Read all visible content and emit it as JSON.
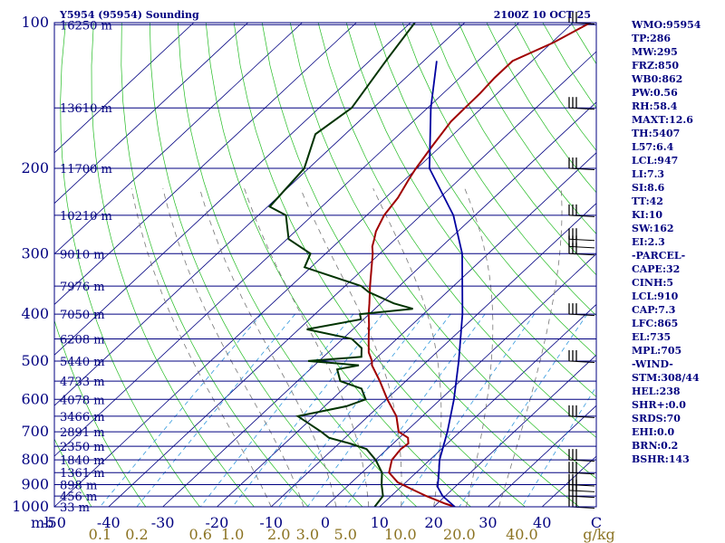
{
  "chart_data": {
    "type": "skew-t",
    "title_left": "Y5954 (95954) Sounding",
    "title_right": "2100Z 10 OCT 25",
    "pressure_range_hpa": [
      1000,
      100
    ],
    "temp_range_c": [
      -50,
      50
    ],
    "pressure_ticks": [
      {
        "p": 100,
        "label": "100"
      },
      {
        "p": 200,
        "label": "200"
      },
      {
        "p": 300,
        "label": "300"
      },
      {
        "p": 400,
        "label": "400"
      },
      {
        "p": 500,
        "label": "500"
      },
      {
        "p": 600,
        "label": "600"
      },
      {
        "p": 700,
        "label": "700"
      },
      {
        "p": 800,
        "label": "800"
      },
      {
        "p": 900,
        "label": "900"
      },
      {
        "p": 1000,
        "label": "1000"
      }
    ],
    "height_levels": [
      {
        "p": 101,
        "label": "16250 m"
      },
      {
        "p": 150,
        "label": "13610 m"
      },
      {
        "p": 200,
        "label": "11700 m"
      },
      {
        "p": 250,
        "label": "10210 m"
      },
      {
        "p": 300,
        "label": "9010 m"
      },
      {
        "p": 350,
        "label": "7976 m"
      },
      {
        "p": 400,
        "label": "7050 m"
      },
      {
        "p": 450,
        "label": "6208 m"
      },
      {
        "p": 500,
        "label": "5440 m"
      },
      {
        "p": 550,
        "label": "4733 m"
      },
      {
        "p": 600,
        "label": "4078 m"
      },
      {
        "p": 650,
        "label": "3466 m"
      },
      {
        "p": 700,
        "label": "2891 m"
      },
      {
        "p": 750,
        "label": "2350 m"
      },
      {
        "p": 800,
        "label": "1840 m"
      },
      {
        "p": 850,
        "label": "1361 m"
      },
      {
        "p": 900,
        "label": "898 m"
      },
      {
        "p": 950,
        "label": "456 m"
      },
      {
        "p": 1000,
        "label": "33 m"
      }
    ],
    "pressure_unit_label": "mb",
    "temp_ticks": [
      {
        "t": -50,
        "label": "-50"
      },
      {
        "t": -40,
        "label": "-40"
      },
      {
        "t": -30,
        "label": "-30"
      },
      {
        "t": -20,
        "label": "-20"
      },
      {
        "t": -10,
        "label": "-10"
      },
      {
        "t": 0,
        "label": "0"
      },
      {
        "t": 10,
        "label": "10"
      },
      {
        "t": 20,
        "label": "20"
      },
      {
        "t": 30,
        "label": "30"
      },
      {
        "t": 40,
        "label": "40"
      },
      {
        "t": 50,
        "label": "C"
      }
    ],
    "mixing_ratio_ticks": [
      {
        "w": 0.1,
        "label": "0.1"
      },
      {
        "w": 0.2,
        "label": "0.2"
      },
      {
        "w": 0.6,
        "label": "0.6"
      },
      {
        "w": 1.0,
        "label": "1.0"
      },
      {
        "w": 2.0,
        "label": "2.0"
      },
      {
        "w": 3.0,
        "label": "3.0"
      },
      {
        "w": 5.0,
        "label": "5.0"
      },
      {
        "w": 10.0,
        "label": "10.0"
      },
      {
        "w": 20.0,
        "label": "20.0"
      },
      {
        "w": 40.0,
        "label": "40.0"
      }
    ],
    "mixing_ratio_unit": "g/kg",
    "series": [
      {
        "name": "Temperature",
        "color": "#a00000",
        "points": [
          [
            1000,
            23.9
          ],
          [
            985,
            21.5
          ],
          [
            950,
            16.5
          ],
          [
            920,
            12.5
          ],
          [
            890,
            8.5
          ],
          [
            850,
            5.0
          ],
          [
            800,
            3.0
          ],
          [
            760,
            2.5
          ],
          [
            740,
            2.8
          ],
          [
            720,
            1.6
          ],
          [
            700,
            -1.3
          ],
          [
            650,
            -4.8
          ],
          [
            600,
            -9.8
          ],
          [
            550,
            -14.8
          ],
          [
            510,
            -19.4
          ],
          [
            500,
            -20.2
          ],
          [
            480,
            -22.5
          ],
          [
            450,
            -25.2
          ],
          [
            420,
            -28.0
          ],
          [
            400,
            -30.1
          ],
          [
            380,
            -32.1
          ],
          [
            350,
            -35.4
          ],
          [
            300,
            -41.3
          ],
          [
            290,
            -42.8
          ],
          [
            280,
            -43.9
          ],
          [
            270,
            -45.1
          ],
          [
            250,
            -46.8
          ],
          [
            230,
            -47.7
          ],
          [
            210,
            -49.4
          ],
          [
            200,
            -50.2
          ],
          [
            180,
            -51.6
          ],
          [
            160,
            -53.0
          ],
          [
            150,
            -53.1
          ],
          [
            140,
            -53.2
          ],
          [
            130,
            -53.6
          ],
          [
            120,
            -53.6
          ],
          [
            110,
            -49.7
          ],
          [
            100,
            -46.8
          ]
        ]
      },
      {
        "name": "Dewpoint",
        "color": "#003300",
        "points": [
          [
            1000,
            9.1
          ],
          [
            950,
            8.5
          ],
          [
            900,
            6.0
          ],
          [
            850,
            3.7
          ],
          [
            800,
            0.0
          ],
          [
            760,
            -3.8
          ],
          [
            740,
            -8.0
          ],
          [
            720,
            -13.0
          ],
          [
            700,
            -15.6
          ],
          [
            650,
            -23.0
          ],
          [
            620,
            -16.0
          ],
          [
            600,
            -13.8
          ],
          [
            570,
            -16.7
          ],
          [
            550,
            -22.1
          ],
          [
            520,
            -25.0
          ],
          [
            510,
            -21.8
          ],
          [
            500,
            -32.0
          ],
          [
            490,
            -23.0
          ],
          [
            470,
            -24.7
          ],
          [
            450,
            -28.3
          ],
          [
            430,
            -38.5
          ],
          [
            410,
            -30.5
          ],
          [
            400,
            -31.7
          ],
          [
            390,
            -23.0
          ],
          [
            380,
            -27.6
          ],
          [
            360,
            -34.5
          ],
          [
            350,
            -37.0
          ],
          [
            320,
            -51.2
          ],
          [
            300,
            -52.8
          ],
          [
            280,
            -59.7
          ],
          [
            250,
            -64.9
          ],
          [
            240,
            -69.6
          ],
          [
            200,
            -70.8
          ],
          [
            170,
            -75.5
          ],
          [
            150,
            -74.0
          ],
          [
            120,
            -77.0
          ],
          [
            100,
            -79.2
          ]
        ]
      },
      {
        "name": "Parcel",
        "color": "#0000a0",
        "points": [
          [
            1000,
            23.9
          ],
          [
            950,
            19.5
          ],
          [
            910,
            16.8
          ],
          [
            850,
            14.2
          ],
          [
            800,
            11.8
          ],
          [
            700,
            7.7
          ],
          [
            600,
            2.5
          ],
          [
            500,
            -4.2
          ],
          [
            400,
            -12.8
          ],
          [
            300,
            -24.8
          ],
          [
            250,
            -34.0
          ],
          [
            200,
            -47.7
          ],
          [
            150,
            -59.4
          ],
          [
            120,
            -67.6
          ]
        ]
      }
    ],
    "wind_levels_hpa": [
      1000,
      950,
      925,
      900,
      850,
      800,
      650,
      500,
      400,
      300,
      290,
      280,
      250,
      200,
      150,
      100
    ]
  },
  "params": [
    "WMO:95954",
    "TP:286",
    "MW:295",
    "FRZ:850",
    "WB0:862",
    "PW:0.56",
    "RH:58.4",
    "MAXT:12.6",
    "TH:5407",
    "L57:6.4",
    "LCL:947",
    "LI:7.3",
    "SI:8.6",
    "TT:42",
    "KI:10",
    "SW:162",
    "EI:2.3",
    "-PARCEL-",
    "CAPE:32",
    "CINH:5",
    "LCL:910",
    "CAP:7.3",
    "LFC:865",
    "EL:735",
    "MPL:705",
    "-WIND-",
    "STM:308/44",
    "HEL:238",
    "SHR+:0.0",
    "SRDS:70",
    "EHI:0.0",
    "BRN:0.2",
    "BSHR:143"
  ],
  "colors": {
    "isobar": "#000080",
    "isotherm": "#000080",
    "dry_adiabat": "#22bb22",
    "mixing_ratio": "#3399dd",
    "moist_adiabat": "#777777",
    "wind_barb": "#000000"
  }
}
